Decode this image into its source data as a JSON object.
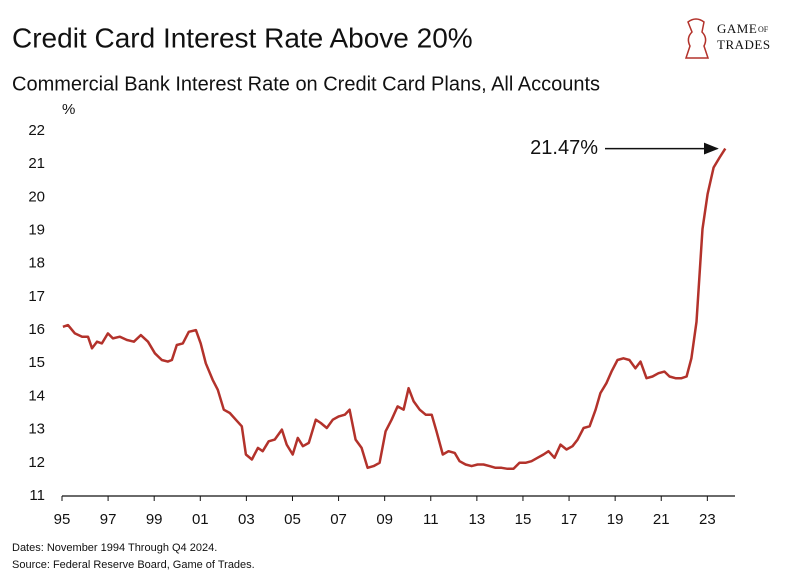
{
  "chart_data": {
    "type": "line",
    "title": "Credit Card Interest Rate Above 20%",
    "subtitle": "Commercial Bank Interest Rate on Credit Card Plans, All Accounts",
    "y_label": "%",
    "annotation": "21.47%",
    "notes": [
      "Dates: November 1994 Through Q4 2024.",
      "Source: Federal Reserve Board, Game of Trades."
    ],
    "logo": {
      "top": "Game",
      "small": "of",
      "bottom": "Trades"
    },
    "xlim": [
      1995,
      2024.2
    ],
    "ylim": [
      11,
      22
    ],
    "xticks": [
      {
        "value": 1995,
        "label": "95"
      },
      {
        "value": 1997,
        "label": "97"
      },
      {
        "value": 1999,
        "label": "99"
      },
      {
        "value": 2001,
        "label": "01"
      },
      {
        "value": 2003,
        "label": "03"
      },
      {
        "value": 2005,
        "label": "05"
      },
      {
        "value": 2007,
        "label": "07"
      },
      {
        "value": 2009,
        "label": "09"
      },
      {
        "value": 2011,
        "label": "11"
      },
      {
        "value": 2013,
        "label": "13"
      },
      {
        "value": 2015,
        "label": "15"
      },
      {
        "value": 2017,
        "label": "17"
      },
      {
        "value": 2019,
        "label": "19"
      },
      {
        "value": 2021,
        "label": "21"
      },
      {
        "value": 2023,
        "label": "23"
      }
    ],
    "yticks": [
      11,
      12,
      13,
      14,
      15,
      16,
      17,
      18,
      19,
      20,
      21,
      22
    ],
    "grid": false,
    "series": [
      {
        "name": "Credit card interest rate",
        "color": "#b3322b",
        "x": [
          1995.04,
          1995.26,
          1995.56,
          1995.87,
          1996.13,
          1996.3,
          1996.52,
          1996.73,
          1996.99,
          1997.21,
          1997.51,
          1997.82,
          1998.12,
          1998.42,
          1998.73,
          1999.03,
          1999.33,
          1999.59,
          1999.77,
          1999.98,
          2000.24,
          2000.5,
          2000.81,
          2001.02,
          2001.24,
          2001.54,
          2001.76,
          2002.02,
          2002.28,
          2002.54,
          2002.8,
          2002.98,
          2003.24,
          2003.5,
          2003.71,
          2003.97,
          2004.23,
          2004.54,
          2004.75,
          2005.01,
          2005.23,
          2005.45,
          2005.71,
          2006.01,
          2006.23,
          2006.49,
          2006.75,
          2007.01,
          2007.27,
          2007.48,
          2007.74,
          2008.0,
          2008.26,
          2008.52,
          2008.78,
          2009.04,
          2009.3,
          2009.56,
          2009.82,
          2010.04,
          2010.26,
          2010.52,
          2010.78,
          2011.04,
          2011.25,
          2011.52,
          2011.77,
          2012.04,
          2012.25,
          2012.51,
          2012.77,
          2013.03,
          2013.29,
          2013.55,
          2013.81,
          2014.07,
          2014.33,
          2014.59,
          2014.85,
          2015.11,
          2015.37,
          2015.63,
          2015.89,
          2016.11,
          2016.37,
          2016.63,
          2016.89,
          2017.15,
          2017.37,
          2017.63,
          2017.89,
          2018.15,
          2018.36,
          2018.62,
          2018.84,
          2019.1,
          2019.36,
          2019.62,
          2019.88,
          2020.1,
          2020.36,
          2020.62,
          2020.88,
          2021.14,
          2021.36,
          2021.62,
          2021.88,
          2022.1,
          2022.31,
          2022.53,
          2022.79,
          2023.01,
          2023.27,
          2023.53,
          2023.78
        ],
        "values": [
          16.1,
          16.15,
          15.9,
          15.8,
          15.8,
          15.45,
          15.65,
          15.6,
          15.9,
          15.75,
          15.8,
          15.7,
          15.65,
          15.85,
          15.65,
          15.3,
          15.1,
          15.05,
          15.1,
          15.55,
          15.6,
          15.95,
          16.0,
          15.6,
          15.0,
          14.5,
          14.2,
          13.6,
          13.5,
          13.3,
          13.1,
          12.25,
          12.1,
          12.45,
          12.35,
          12.65,
          12.7,
          13.0,
          12.55,
          12.25,
          12.75,
          12.5,
          12.6,
          13.3,
          13.2,
          13.05,
          13.3,
          13.4,
          13.45,
          13.6,
          12.7,
          12.45,
          11.85,
          11.9,
          12.0,
          12.95,
          13.3,
          13.7,
          13.6,
          14.25,
          13.85,
          13.6,
          13.45,
          13.45,
          12.95,
          12.25,
          12.35,
          12.3,
          12.05,
          11.95,
          11.9,
          11.95,
          11.95,
          11.9,
          11.85,
          11.85,
          11.82,
          11.82,
          12.0,
          12.0,
          12.05,
          12.15,
          12.25,
          12.35,
          12.15,
          12.55,
          12.4,
          12.5,
          12.7,
          13.05,
          13.1,
          13.6,
          14.1,
          14.4,
          14.75,
          15.1,
          15.15,
          15.1,
          14.85,
          15.05,
          14.55,
          14.6,
          14.7,
          14.75,
          14.6,
          14.55,
          14.55,
          14.6,
          15.15,
          16.25,
          19.05,
          20.1,
          20.9,
          21.2,
          21.47
        ]
      }
    ]
  }
}
